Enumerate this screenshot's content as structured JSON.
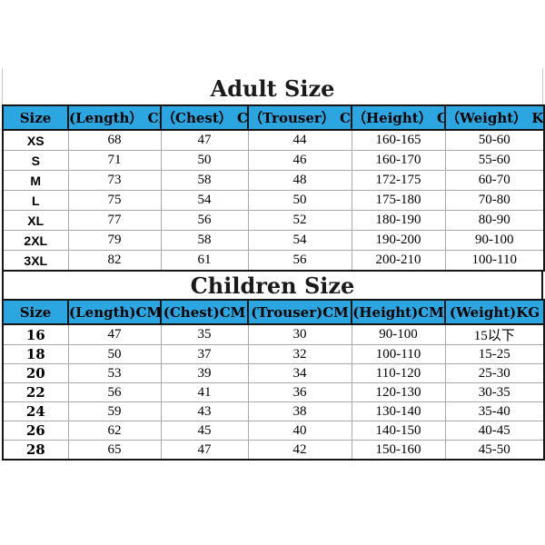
{
  "colors": {
    "header_bg": "#2ba6e0",
    "border_dark": "#161616",
    "border_light": "#a8a8a8",
    "page_bg": "#ffffff",
    "text": "#000000"
  },
  "adult": {
    "title": "Adult Size",
    "columns": [
      "Size",
      "(Length） CM",
      "（Chest） CM",
      "（Trouser） CM",
      "（Height） CM",
      "（Weight） KG"
    ],
    "rows": [
      [
        "XS",
        "68",
        "47",
        "44",
        "160-165",
        "50-60"
      ],
      [
        "S",
        "71",
        "50",
        "46",
        "160-170",
        "55-60"
      ],
      [
        "M",
        "73",
        "58",
        "48",
        "172-175",
        "60-70"
      ],
      [
        "L",
        "75",
        "54",
        "50",
        "175-180",
        "70-80"
      ],
      [
        "XL",
        "77",
        "56",
        "52",
        "180-190",
        "80-90"
      ],
      [
        "2XL",
        "79",
        "58",
        "54",
        "190-200",
        "90-100"
      ],
      [
        "3XL",
        "82",
        "61",
        "56",
        "200-210",
        "100-110"
      ]
    ]
  },
  "children": {
    "title": "Children Size",
    "columns": [
      "Size",
      "(Length)CM",
      "(Chest)CM",
      "(Trouser)CM",
      "(Height)CM",
      "(Weight)KG"
    ],
    "rows": [
      [
        "16",
        "47",
        "35",
        "30",
        "90-100",
        "15以下"
      ],
      [
        "18",
        "50",
        "37",
        "32",
        "100-110",
        "15-25"
      ],
      [
        "20",
        "53",
        "39",
        "34",
        "110-120",
        "25-30"
      ],
      [
        "22",
        "56",
        "41",
        "36",
        "120-130",
        "30-35"
      ],
      [
        "24",
        "59",
        "43",
        "38",
        "130-140",
        "35-40"
      ],
      [
        "26",
        "62",
        "45",
        "40",
        "140-150",
        "40-45"
      ],
      [
        "28",
        "65",
        "47",
        "42",
        "150-160",
        "45-50"
      ]
    ]
  }
}
